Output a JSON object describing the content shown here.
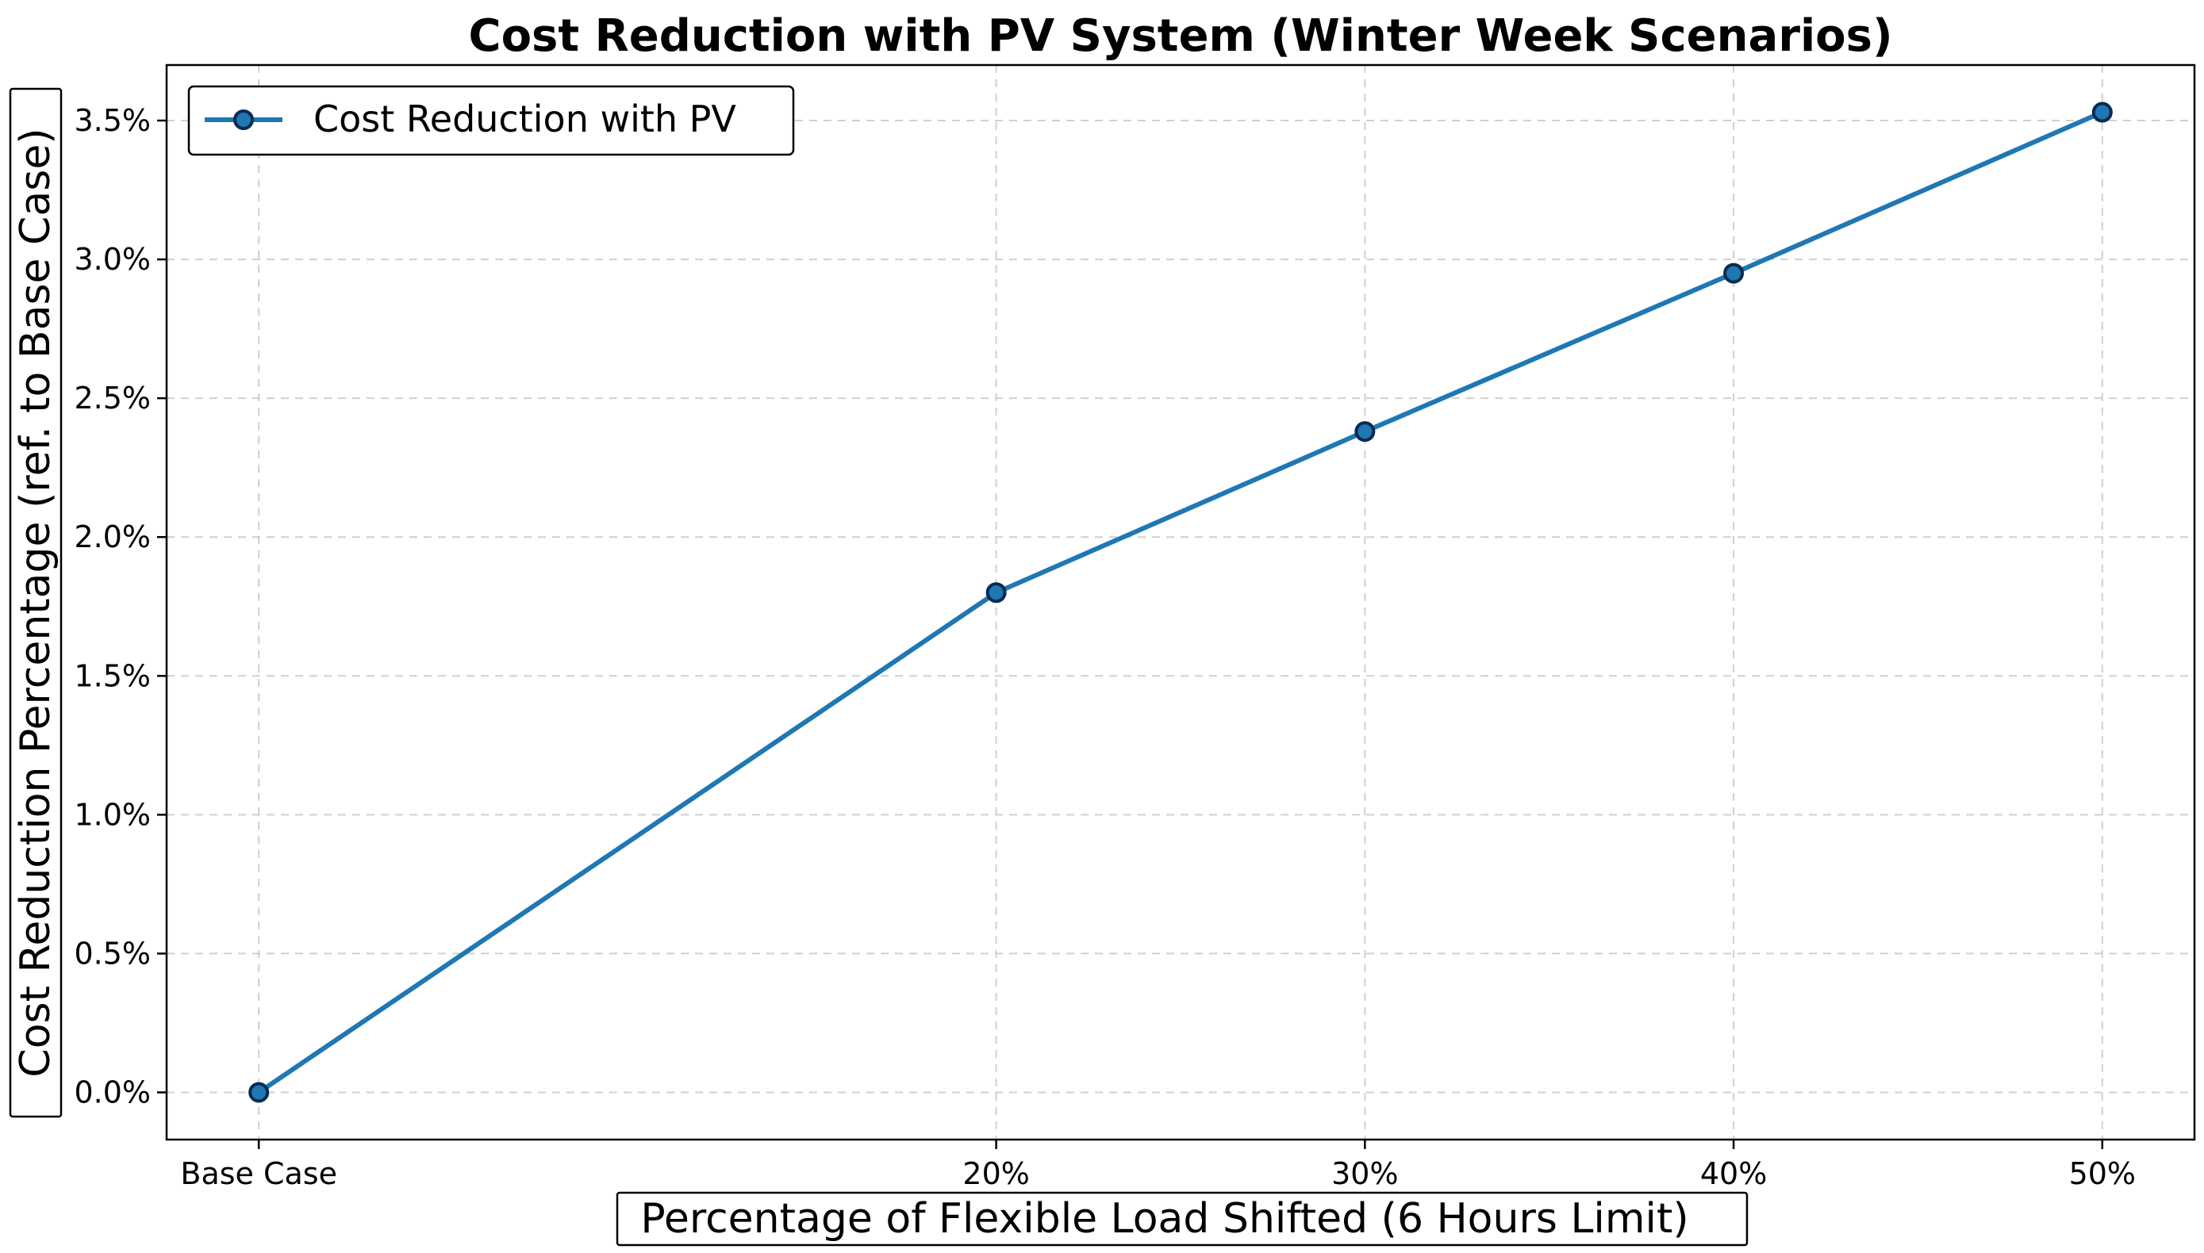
{
  "chart_data": {
    "type": "line",
    "title": "Cost Reduction with PV System (Winter Week Scenarios)",
    "xlabel": "Percentage of Flexible Load Shifted (6 Hours Limit)",
    "ylabel": "Cost Reduction Percentage (ref. to Base Case)",
    "x_positions": [
      0,
      20,
      30,
      40,
      50
    ],
    "x_tick_labels": [
      "Base Case",
      "20%",
      "30%",
      "40%",
      "50%"
    ],
    "xlim": [
      -2.5,
      52.5
    ],
    "ylim": [
      -0.17,
      3.7
    ],
    "y_ticks": [
      0.0,
      0.5,
      1.0,
      1.5,
      2.0,
      2.5,
      3.0,
      3.5
    ],
    "y_tick_labels": [
      "0.0%",
      "0.5%",
      "1.0%",
      "1.5%",
      "2.0%",
      "2.5%",
      "3.0%",
      "3.5%"
    ],
    "grid": true,
    "legend_position": "top-left",
    "series": [
      {
        "name": "Cost Reduction with PV",
        "values": [
          0.0,
          1.8,
          2.38,
          2.95,
          3.53
        ],
        "line_color": "#1f77b4",
        "marker_face_color": "#1f77b4",
        "marker_edge_color": "#0a2a4f"
      }
    ]
  }
}
